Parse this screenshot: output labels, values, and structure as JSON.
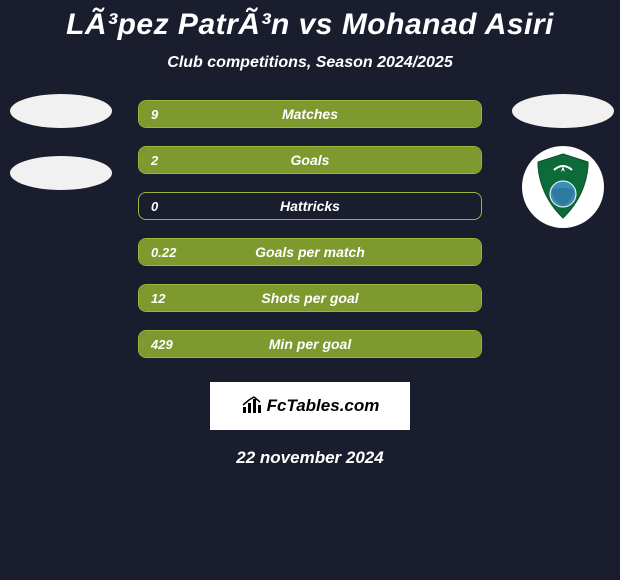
{
  "title": "LÃ³pez PatrÃ³n vs Mohanad Asiri",
  "subtitle": "Club competitions, Season 2024/2025",
  "colors": {
    "background": "#1a1d2e",
    "stat_border": "#9bb43a",
    "stat_fill": "#7e9a2f",
    "text": "#ffffff",
    "badge_bg": "#f1f1f1",
    "footer_bg": "#ffffff",
    "footer_text": "#000000"
  },
  "layout": {
    "stat_row_width": 344,
    "stat_row_height": 28,
    "stat_row_gap": 18,
    "title_fontsize": 30,
    "subtitle_fontsize": 16,
    "stat_value_fontsize": 13,
    "stat_label_fontsize": 14
  },
  "stats": [
    {
      "value": "9",
      "label": "Matches",
      "fill_pct": 100
    },
    {
      "value": "2",
      "label": "Goals",
      "fill_pct": 100
    },
    {
      "value": "0",
      "label": "Hattricks",
      "fill_pct": 0
    },
    {
      "value": "0.22",
      "label": "Goals per match",
      "fill_pct": 100
    },
    {
      "value": "12",
      "label": "Shots per goal",
      "fill_pct": 100
    },
    {
      "value": "429",
      "label": "Min per goal",
      "fill_pct": 100
    }
  ],
  "left_badges": [
    {
      "kind": "ellipse"
    },
    {
      "kind": "ellipse"
    }
  ],
  "right_badges": [
    {
      "kind": "ellipse"
    },
    {
      "kind": "club_logo",
      "shield_color": "#0d6b3a",
      "accent_color": "#ffffff"
    }
  ],
  "footer": {
    "brand": "FcTables.com",
    "date": "22 november 2024"
  },
  "icons": {
    "chart_icon": "chart-bars"
  }
}
